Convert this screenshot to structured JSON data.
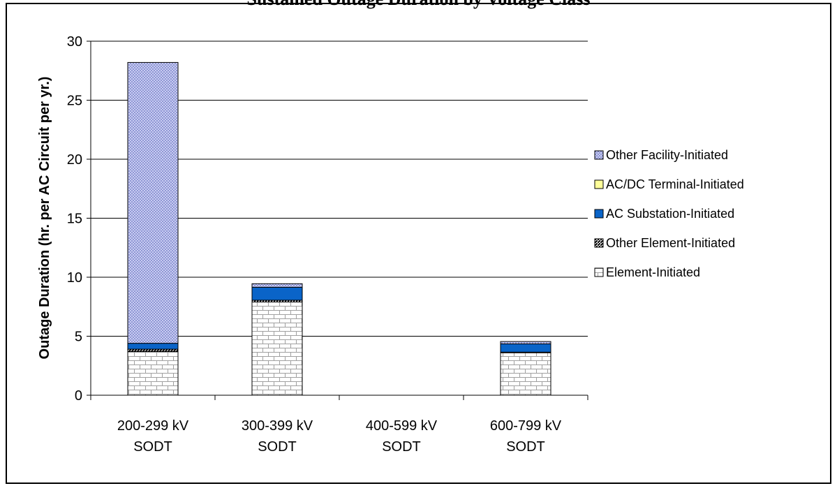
{
  "chart_data": {
    "type": "bar",
    "stacked": true,
    "title": "Sustained Outage Duration by Voltage Class",
    "ylabel": "Outage Duration (hr. per AC Circuit per yr.)",
    "xlabel": "",
    "ylim": [
      0,
      30
    ],
    "yticks": [
      0,
      5,
      10,
      15,
      20,
      25,
      30
    ],
    "grid": true,
    "legend_position": "right",
    "categories": [
      [
        "200-299 kV",
        "SODT"
      ],
      [
        "300-399 kV",
        "SODT"
      ],
      [
        "400-599 kV",
        "SODT"
      ],
      [
        "600-799 kV",
        "SODT"
      ]
    ],
    "series": [
      {
        "name": "Element-Initiated",
        "values": [
          3.7,
          7.9,
          0,
          3.6
        ],
        "pattern": "brick",
        "color": "#ffffff"
      },
      {
        "name": "Other Element-Initiated",
        "values": [
          0.2,
          0.15,
          0,
          0.05
        ],
        "pattern": "diagonal",
        "color": "#000000"
      },
      {
        "name": "AC Substation-Initiated",
        "values": [
          0.5,
          1.1,
          0,
          0.7
        ],
        "pattern": "solid",
        "color": "#0a64c8"
      },
      {
        "name": "AC/DC Terminal-Initiated",
        "values": [
          0,
          0,
          0,
          0
        ],
        "pattern": "solid",
        "color": "#ffff99"
      },
      {
        "name": "Other Facility-Initiated",
        "values": [
          23.8,
          0.3,
          0,
          0.2
        ],
        "pattern": "dots",
        "color": "#c8ccf0"
      }
    ],
    "legend_order": [
      "Other Facility-Initiated",
      "AC/DC Terminal-Initiated",
      "AC Substation-Initiated",
      "Other Element-Initiated",
      "Element-Initiated"
    ]
  }
}
